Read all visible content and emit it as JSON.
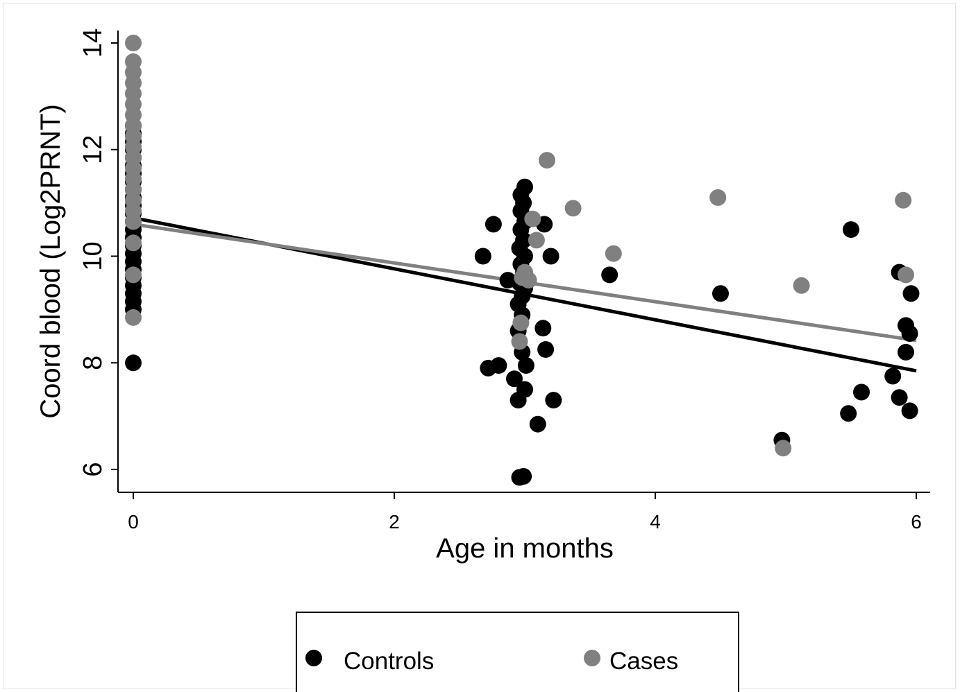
{
  "colors": {
    "controls": "#000000",
    "cases": "#808080",
    "axis": "#000000",
    "background": "#ffffff"
  },
  "chart_data": {
    "type": "scatter",
    "title": "",
    "xlabel": "Age in months",
    "ylabel": "Coord blood (Log2PRNT)",
    "xlim": [
      -0.1,
      6.1
    ],
    "ylim": [
      5.8,
      14.2
    ],
    "xticks": [
      0,
      2,
      4,
      6
    ],
    "yticks": [
      6,
      8,
      10,
      12,
      14
    ],
    "grid": false,
    "legend_position": "bottom",
    "series": [
      {
        "name": "Controls",
        "color": "#000000",
        "points": [
          [
            0,
            8.0
          ],
          [
            0,
            9.0
          ],
          [
            0,
            9.15
          ],
          [
            0,
            9.3
          ],
          [
            0,
            9.45
          ],
          [
            0,
            9.6
          ],
          [
            0,
            9.75
          ],
          [
            0,
            9.9
          ],
          [
            0,
            10.05
          ],
          [
            0,
            10.2
          ],
          [
            0,
            10.35
          ],
          [
            0,
            10.5
          ],
          [
            0,
            10.65
          ],
          [
            0,
            10.8
          ],
          [
            0,
            10.95
          ],
          [
            0,
            11.1
          ],
          [
            0,
            11.25
          ],
          [
            0,
            11.4
          ],
          [
            0,
            11.55
          ],
          [
            0,
            11.7
          ],
          [
            0,
            11.85
          ],
          [
            0,
            12.0
          ],
          [
            0,
            12.15
          ],
          [
            0,
            12.3
          ],
          [
            0,
            12.45
          ],
          [
            2.72,
            7.9
          ],
          [
            2.76,
            10.6
          ],
          [
            2.68,
            10.0
          ],
          [
            2.8,
            7.95
          ],
          [
            2.87,
            9.55
          ],
          [
            2.92,
            7.7
          ],
          [
            2.95,
            7.3
          ],
          [
            2.96,
            5.85
          ],
          [
            2.99,
            5.87
          ],
          [
            3.0,
            7.5
          ],
          [
            3.01,
            7.95
          ],
          [
            2.98,
            8.2
          ],
          [
            2.95,
            8.6
          ],
          [
            2.98,
            8.9
          ],
          [
            2.95,
            9.1
          ],
          [
            2.98,
            9.25
          ],
          [
            3.0,
            9.4
          ],
          [
            2.96,
            9.5
          ],
          [
            2.99,
            9.7
          ],
          [
            2.97,
            9.85
          ],
          [
            3.0,
            10.0
          ],
          [
            2.96,
            10.15
          ],
          [
            2.99,
            10.3
          ],
          [
            2.97,
            10.5
          ],
          [
            3.0,
            10.65
          ],
          [
            2.97,
            10.85
          ],
          [
            2.99,
            11.0
          ],
          [
            2.97,
            11.15
          ],
          [
            3.0,
            11.3
          ],
          [
            3.1,
            6.85
          ],
          [
            3.16,
            8.25
          ],
          [
            3.14,
            8.65
          ],
          [
            3.15,
            10.6
          ],
          [
            3.2,
            10.0
          ],
          [
            3.22,
            7.3
          ],
          [
            3.65,
            9.65
          ],
          [
            4.5,
            9.3
          ],
          [
            4.97,
            6.55
          ],
          [
            5.5,
            10.5
          ],
          [
            5.48,
            7.05
          ],
          [
            5.58,
            7.45
          ],
          [
            5.82,
            7.75
          ],
          [
            5.87,
            7.35
          ],
          [
            5.87,
            9.7
          ],
          [
            5.92,
            8.2
          ],
          [
            5.92,
            8.7
          ],
          [
            5.95,
            7.1
          ],
          [
            5.95,
            8.55
          ],
          [
            5.96,
            9.3
          ]
        ]
      },
      {
        "name": "Cases",
        "color": "#808080",
        "points": [
          [
            0,
            8.85
          ],
          [
            0,
            9.65
          ],
          [
            0,
            10.25
          ],
          [
            0,
            10.65
          ],
          [
            0,
            10.85
          ],
          [
            0,
            11.05
          ],
          [
            0,
            11.25
          ],
          [
            0,
            11.45
          ],
          [
            0,
            11.65
          ],
          [
            0,
            11.85
          ],
          [
            0,
            12.05
          ],
          [
            0,
            12.25
          ],
          [
            0,
            12.45
          ],
          [
            0,
            12.65
          ],
          [
            0,
            12.85
          ],
          [
            0,
            13.05
          ],
          [
            0,
            13.25
          ],
          [
            0,
            13.45
          ],
          [
            0,
            13.65
          ],
          [
            0,
            14.0
          ],
          [
            2.96,
            8.4
          ],
          [
            2.97,
            8.75
          ],
          [
            2.98,
            9.6
          ],
          [
            3.0,
            9.7
          ],
          [
            3.03,
            9.55
          ],
          [
            3.06,
            10.7
          ],
          [
            3.09,
            10.3
          ],
          [
            3.17,
            11.8
          ],
          [
            3.37,
            10.9
          ],
          [
            3.68,
            10.05
          ],
          [
            4.48,
            11.1
          ],
          [
            4.98,
            6.4
          ],
          [
            5.12,
            9.45
          ],
          [
            5.9,
            11.05
          ],
          [
            5.92,
            9.65
          ]
        ]
      }
    ],
    "fit_lines": [
      {
        "series": "Controls",
        "color": "#000000",
        "x": [
          0,
          6
        ],
        "y": [
          10.72,
          7.85
        ]
      },
      {
        "series": "Cases",
        "color": "#808080",
        "x": [
          0,
          6
        ],
        "y": [
          10.6,
          8.42
        ]
      }
    ]
  }
}
